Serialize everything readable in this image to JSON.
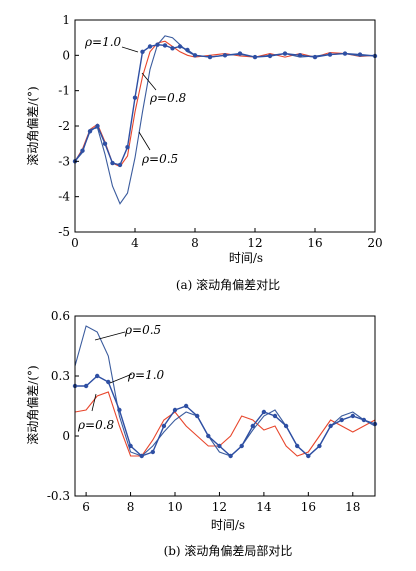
{
  "chart_data": [
    {
      "type": "line",
      "caption": "(a) 滚动角偏差对比",
      "xlabel": "时间/s",
      "ylabel": "滚动角偏差/(°)",
      "xlim": [
        0,
        20
      ],
      "ylim": [
        -5,
        1
      ],
      "xticks": [
        "0",
        "4",
        "8",
        "12",
        "16",
        "20"
      ],
      "yticks": [
        "1",
        "0",
        "-1",
        "-2",
        "-3",
        "-4",
        "-5"
      ],
      "annotations": [
        {
          "text": "ρ=1.0",
          "series": "ρ=1.0"
        },
        {
          "text": "ρ=0.8",
          "series": "ρ=0.8"
        },
        {
          "text": "ρ=0.5",
          "series": "ρ=0.5"
        }
      ],
      "series": [
        {
          "name": "ρ=1.0",
          "color": "#2e4fa3",
          "markers": true,
          "x": [
            0,
            0.5,
            1,
            1.5,
            2,
            2.5,
            3,
            3.5,
            4,
            4.5,
            5,
            5.5,
            6,
            6.5,
            7,
            7.5,
            8,
            9,
            10,
            11,
            12,
            13,
            14,
            15,
            16,
            17,
            18,
            19,
            20
          ],
          "y": [
            -3.0,
            -2.7,
            -2.15,
            -2.0,
            -2.5,
            -3.05,
            -3.1,
            -2.6,
            -1.2,
            0.1,
            0.25,
            0.3,
            0.28,
            0.2,
            0.25,
            0.15,
            0.0,
            -0.05,
            0.0,
            0.05,
            -0.05,
            -0.02,
            0.05,
            0.0,
            -0.05,
            0.02,
            0.05,
            0.02,
            -0.02
          ]
        },
        {
          "name": "ρ=0.8",
          "color": "#e8462c",
          "markers": false,
          "x": [
            0,
            0.5,
            1,
            1.5,
            2,
            2.5,
            3,
            3.5,
            4,
            4.5,
            5,
            5.5,
            6,
            6.5,
            7,
            7.5,
            8,
            9,
            10,
            11,
            12,
            13,
            14,
            15,
            16,
            17,
            18,
            19,
            20
          ],
          "y": [
            -3.0,
            -2.65,
            -2.1,
            -1.95,
            -2.45,
            -3.05,
            -3.15,
            -2.85,
            -1.6,
            -0.6,
            0.1,
            0.35,
            0.4,
            0.25,
            0.1,
            0.0,
            -0.05,
            0.0,
            0.05,
            -0.02,
            -0.05,
            0.05,
            -0.05,
            0.05,
            -0.05,
            0.08,
            0.05,
            -0.03,
            0.0
          ]
        },
        {
          "name": "ρ=0.5",
          "color": "#3b5c9e",
          "markers": false,
          "x": [
            0,
            0.5,
            1,
            1.5,
            2,
            2.5,
            3,
            3.5,
            4,
            4.5,
            5,
            5.5,
            6,
            6.5,
            7,
            7.5,
            8,
            9,
            10,
            11,
            12,
            13,
            14,
            15,
            16,
            17,
            18,
            19,
            20
          ],
          "y": [
            -3.0,
            -2.75,
            -2.1,
            -2.05,
            -2.8,
            -3.7,
            -4.2,
            -3.9,
            -2.9,
            -1.6,
            -0.4,
            0.3,
            0.55,
            0.5,
            0.3,
            0.1,
            0.0,
            -0.05,
            0.0,
            0.03,
            -0.05,
            0.0,
            0.05,
            -0.05,
            -0.02,
            0.03,
            0.05,
            -0.02,
            0.0
          ]
        }
      ]
    },
    {
      "type": "line",
      "caption": "(b) 滚动角偏差局部对比",
      "xlabel": "时间/s",
      "ylabel": "滚动角偏差/(°)",
      "xlim": [
        5.5,
        19
      ],
      "ylim": [
        -0.3,
        0.6
      ],
      "xticks": [
        "6",
        "8",
        "10",
        "12",
        "14",
        "16",
        "18"
      ],
      "yticks": [
        "0.6",
        "0.3",
        "0",
        "-0.3"
      ],
      "annotations": [
        {
          "text": "ρ=0.5",
          "series": "ρ=0.5"
        },
        {
          "text": "ρ=1.0",
          "series": "ρ=1.0"
        },
        {
          "text": "ρ=0.8",
          "series": "ρ=0.8"
        }
      ],
      "series": [
        {
          "name": "ρ=1.0",
          "color": "#2e4fa3",
          "markers": true,
          "x": [
            5.5,
            6,
            6.5,
            7,
            7.5,
            8,
            8.5,
            9,
            9.5,
            10,
            10.5,
            11,
            11.5,
            12,
            12.5,
            13,
            13.5,
            14,
            14.5,
            15,
            15.5,
            16,
            16.5,
            17,
            17.5,
            18,
            18.5,
            19
          ],
          "y": [
            0.25,
            0.25,
            0.3,
            0.27,
            0.13,
            -0.05,
            -0.1,
            -0.08,
            0.05,
            0.13,
            0.15,
            0.1,
            0.0,
            -0.05,
            -0.1,
            -0.05,
            0.05,
            0.12,
            0.1,
            0.05,
            -0.05,
            -0.1,
            -0.05,
            0.05,
            0.08,
            0.1,
            0.08,
            0.06
          ]
        },
        {
          "name": "ρ=0.8",
          "color": "#e8462c",
          "markers": false,
          "x": [
            5.5,
            6,
            6.5,
            7,
            7.5,
            8,
            8.5,
            9,
            9.5,
            10,
            10.5,
            11,
            11.5,
            12,
            12.5,
            13,
            13.5,
            14,
            14.5,
            15,
            15.5,
            16,
            16.5,
            17,
            17.5,
            18,
            18.5,
            19
          ],
          "y": [
            0.12,
            0.13,
            0.2,
            0.22,
            0.05,
            -0.1,
            -0.1,
            -0.02,
            0.08,
            0.12,
            0.05,
            0.0,
            -0.05,
            -0.05,
            0.0,
            0.1,
            0.08,
            0.03,
            0.05,
            -0.05,
            -0.1,
            -0.08,
            0.0,
            0.08,
            0.05,
            0.02,
            0.05,
            0.08
          ]
        },
        {
          "name": "ρ=0.5",
          "color": "#3b5c9e",
          "markers": false,
          "x": [
            5.5,
            6,
            6.5,
            7,
            7.5,
            8,
            8.5,
            9,
            9.5,
            10,
            10.5,
            11,
            11.5,
            12,
            12.5,
            13,
            13.5,
            14,
            14.5,
            15,
            15.5,
            16,
            16.5,
            17,
            17.5,
            18,
            18.5,
            19
          ],
          "y": [
            0.35,
            0.55,
            0.52,
            0.4,
            0.1,
            -0.08,
            -0.1,
            -0.05,
            0.02,
            0.08,
            0.12,
            0.1,
            0.0,
            -0.08,
            -0.1,
            -0.05,
            0.03,
            0.1,
            0.13,
            0.05,
            -0.05,
            -0.1,
            -0.05,
            0.05,
            0.1,
            0.12,
            0.08,
            0.05
          ]
        }
      ]
    }
  ]
}
